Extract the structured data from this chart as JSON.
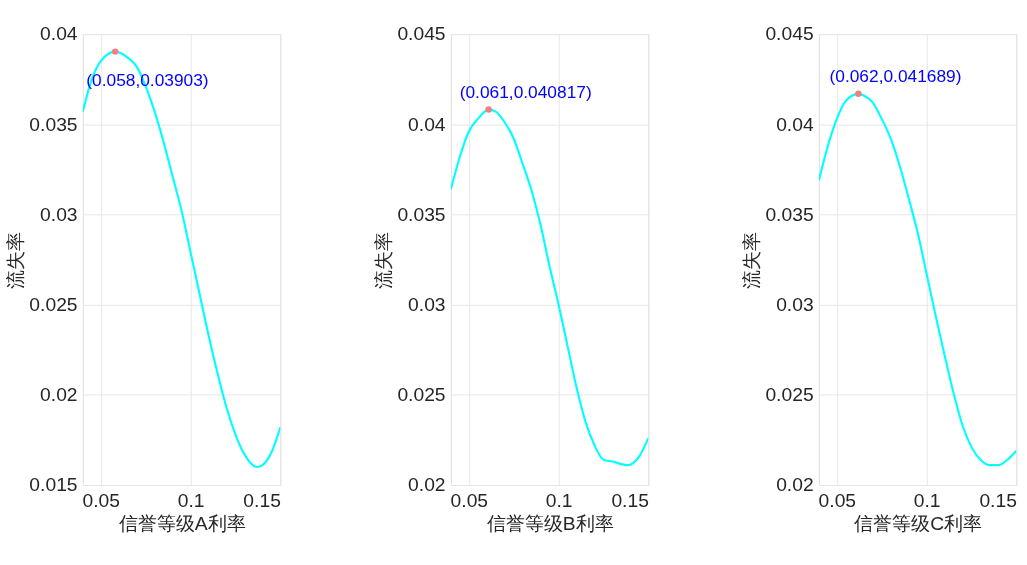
{
  "chart_data": [
    {
      "type": "line",
      "xlabel": "信誉等级A利率",
      "ylabel": "流失率",
      "xlim": [
        0.04,
        0.15
      ],
      "xticks": [
        0.05,
        0.1,
        0.15
      ],
      "ylim": [
        0.015,
        0.04
      ],
      "yticks": [
        0.015,
        0.02,
        0.025,
        0.03,
        0.035,
        0.04
      ],
      "grid": true,
      "series": [
        {
          "color": "#00ffff",
          "x": [
            0.04,
            0.045,
            0.05,
            0.058,
            0.065,
            0.07,
            0.075,
            0.08,
            0.085,
            0.09,
            0.095,
            0.1,
            0.105,
            0.11,
            0.115,
            0.12,
            0.125,
            0.13,
            0.137,
            0.14,
            0.145,
            0.15
          ],
          "values": [
            0.0357,
            0.0375,
            0.0385,
            0.03903,
            0.0387,
            0.0382,
            0.0371,
            0.0357,
            0.034,
            0.0321,
            0.0302,
            0.0279,
            0.0256,
            0.0233,
            0.0212,
            0.0193,
            0.0178,
            0.0167,
            0.016,
            0.0161,
            0.0168,
            0.0182
          ]
        },
        {
          "type": "scatter",
          "color": "#f08080",
          "x": [
            0.058
          ],
          "values": [
            0.03903
          ]
        }
      ],
      "annotations": [
        {
          "text": "(0.058,0.03903)",
          "x": 0.058,
          "y": 0.03903
        }
      ]
    },
    {
      "type": "line",
      "xlabel": "信誉等级B利率",
      "ylabel": "流失率",
      "xlim": [
        0.04,
        0.15
      ],
      "xticks": [
        0.05,
        0.1,
        0.15
      ],
      "ylim": [
        0.02,
        0.045
      ],
      "yticks": [
        0.02,
        0.025,
        0.03,
        0.035,
        0.04,
        0.045
      ],
      "grid": true,
      "series": [
        {
          "color": "#00ffff",
          "x": [
            0.04,
            0.045,
            0.05,
            0.055,
            0.061,
            0.065,
            0.07,
            0.075,
            0.08,
            0.085,
            0.09,
            0.095,
            0.1,
            0.105,
            0.11,
            0.115,
            0.12,
            0.125,
            0.13,
            0.1385,
            0.145,
            0.15
          ],
          "values": [
            0.0364,
            0.0382,
            0.0396,
            0.0403,
            0.040817,
            0.0407,
            0.0401,
            0.0392,
            0.0378,
            0.0363,
            0.0344,
            0.0321,
            0.03,
            0.0277,
            0.0254,
            0.0235,
            0.0222,
            0.0214,
            0.0213,
            0.0211,
            0.0216,
            0.0226
          ]
        },
        {
          "type": "scatter",
          "color": "#f08080",
          "x": [
            0.061
          ],
          "values": [
            0.040817
          ]
        }
      ],
      "annotations": [
        {
          "text": "(0.061,0.040817)",
          "x": 0.061,
          "y": 0.040817
        }
      ]
    },
    {
      "type": "line",
      "xlabel": "信誉等级C利率",
      "ylabel": "流失率",
      "xlim": [
        0.04,
        0.15
      ],
      "xticks": [
        0.05,
        0.1,
        0.15
      ],
      "ylim": [
        0.02,
        0.045
      ],
      "yticks": [
        0.02,
        0.025,
        0.03,
        0.035,
        0.04,
        0.045
      ],
      "grid": true,
      "series": [
        {
          "color": "#00ffff",
          "x": [
            0.04,
            0.045,
            0.05,
            0.055,
            0.062,
            0.065,
            0.07,
            0.075,
            0.08,
            0.085,
            0.09,
            0.095,
            0.1,
            0.105,
            0.11,
            0.115,
            0.12,
            0.125,
            0.13,
            0.135,
            0.14,
            0.145,
            0.15
          ],
          "values": [
            0.0369,
            0.0388,
            0.0403,
            0.0413,
            0.041689,
            0.0416,
            0.0412,
            0.0403,
            0.0392,
            0.0377,
            0.0359,
            0.034,
            0.0317,
            0.0294,
            0.0272,
            0.0251,
            0.0233,
            0.0221,
            0.0214,
            0.0211,
            0.0211,
            0.0214,
            0.0219
          ]
        },
        {
          "type": "scatter",
          "color": "#f08080",
          "x": [
            0.062
          ],
          "values": [
            0.041689
          ]
        }
      ],
      "annotations": [
        {
          "text": "(0.062,0.041689)",
          "x": 0.062,
          "y": 0.041689
        }
      ]
    }
  ]
}
